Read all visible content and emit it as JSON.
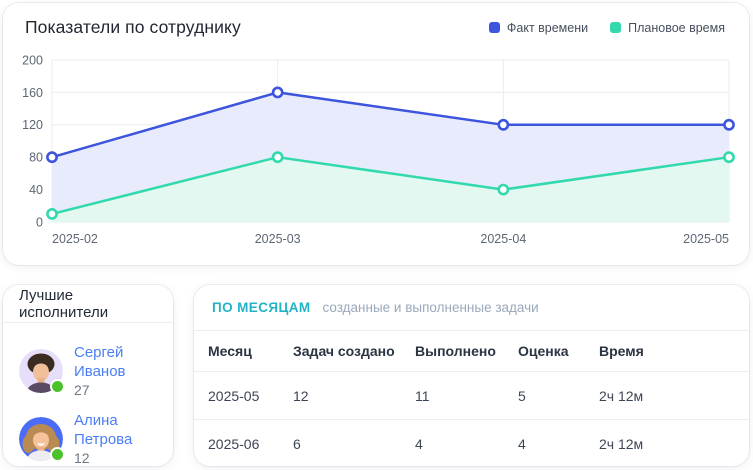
{
  "theme": {
    "link_color": "#4b7ef5",
    "months_title_color": "#24b3c6",
    "subtitle_color": "#9aa8bc",
    "status_color": "#4cc22a",
    "grid_color": "#e8ebf1",
    "axis_label_color": "#5d6775"
  },
  "chart_data": {
    "type": "area",
    "title": "Показатели по сотруднику",
    "x": [
      "2025-02",
      "2025-03",
      "2025-04",
      "2025-05"
    ],
    "series": [
      {
        "name": "Факт времени",
        "color": "#3c55dc",
        "fill": "#e8ebfb",
        "values": [
          80,
          160,
          120,
          120
        ]
      },
      {
        "name": "Плановое время",
        "color": "#31d9ad",
        "fill": "#e3f8f1",
        "values": [
          10,
          80,
          40,
          80
        ]
      }
    ],
    "ylim": [
      0,
      200
    ],
    "yticks": [
      0,
      40,
      80,
      120,
      160,
      200
    ],
    "grid": true,
    "legend_position": "top-right",
    "xlabel": "",
    "ylabel": ""
  },
  "performers_card": {
    "title": "Лучшие исполнители",
    "items": [
      {
        "name": "Сергей Иванов",
        "count": "27",
        "avatar": "young-man-portrait",
        "avatar_bg": "#e6defa",
        "status": "online"
      },
      {
        "name": "Алина Петрова",
        "count": "12",
        "avatar": "smiling-woman-portrait",
        "avatar_bg": "#4a6cf6",
        "status": "online"
      }
    ]
  },
  "months_card": {
    "title": "ПО МЕСЯЦАМ",
    "subtitle": "созданные и выполненные задачи",
    "columns": [
      "Месяц",
      "Задач создано",
      "Выполнено",
      "Оценка",
      "Время"
    ],
    "rows": [
      [
        "2025-05",
        "12",
        "11",
        "5",
        "2ч 12м"
      ],
      [
        "2025-06",
        "6",
        "4",
        "4",
        "2ч 12м"
      ]
    ]
  }
}
